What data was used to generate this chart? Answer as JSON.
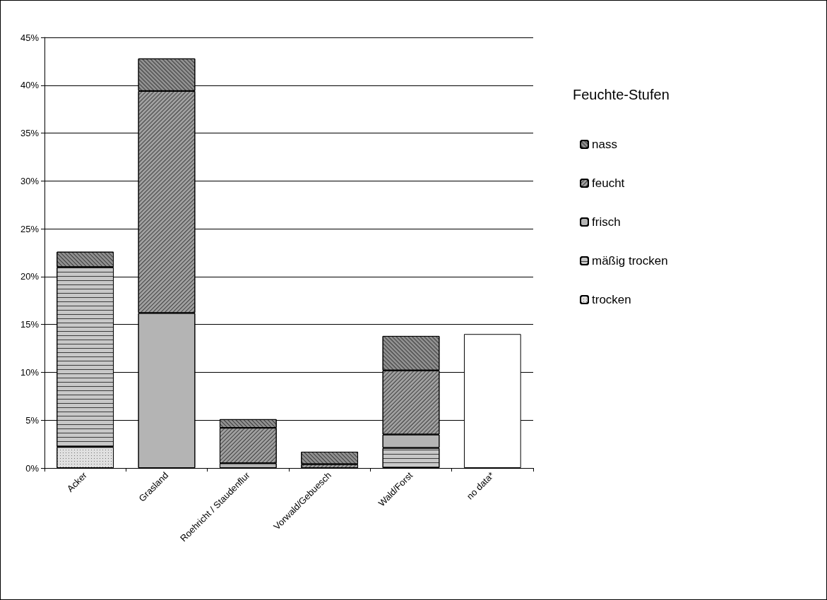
{
  "chart_data": {
    "type": "bar",
    "stacked": true,
    "legend_title": "Feuchte-Stufen",
    "legend": "right",
    "grid": "y",
    "categories": [
      "Acker",
      "Grasland",
      "Roehricht / Staudenflur",
      "Vorwald/Gebuesch",
      "Wald/Forst",
      "no data*"
    ],
    "series": [
      {
        "name": "trocken",
        "color": "#e0e0e0",
        "values": [
          2.2,
          0,
          0,
          0,
          0,
          0
        ]
      },
      {
        "name": "mäßig trocken",
        "color": "#c8c8c8",
        "values": [
          18.8,
          0,
          0,
          null,
          2.1,
          0
        ]
      },
      {
        "name": "frisch",
        "color": "#b4b4b4",
        "values": [
          null,
          16.2,
          0.5,
          null,
          1.4,
          0
        ]
      },
      {
        "name": "feucht",
        "color": "#a0a0a0",
        "values": [
          0,
          23.2,
          3.7,
          0.4,
          6.7,
          0
        ]
      },
      {
        "name": "nass",
        "color": "#909090",
        "values": [
          1.6,
          3.4,
          0.9,
          1.3,
          3.6,
          0
        ]
      },
      {
        "color": "#ffffff",
        "values": [
          0,
          0,
          0,
          0,
          0,
          14.0
        ]
      }
    ],
    "ylim": [
      0,
      45
    ],
    "yticks": [
      {
        "value": 0,
        "label": "0%"
      },
      {
        "value": 5,
        "label": "5%"
      },
      {
        "value": 10,
        "label": "10%"
      },
      {
        "value": 15,
        "label": "15%"
      },
      {
        "value": 20,
        "label": "20%"
      },
      {
        "value": 25,
        "label": "25%"
      },
      {
        "value": 30,
        "label": "30%"
      },
      {
        "value": 35,
        "label": "35%"
      },
      {
        "value": 40,
        "label": "40%"
      },
      {
        "value": 45,
        "label": "45%"
      }
    ]
  }
}
